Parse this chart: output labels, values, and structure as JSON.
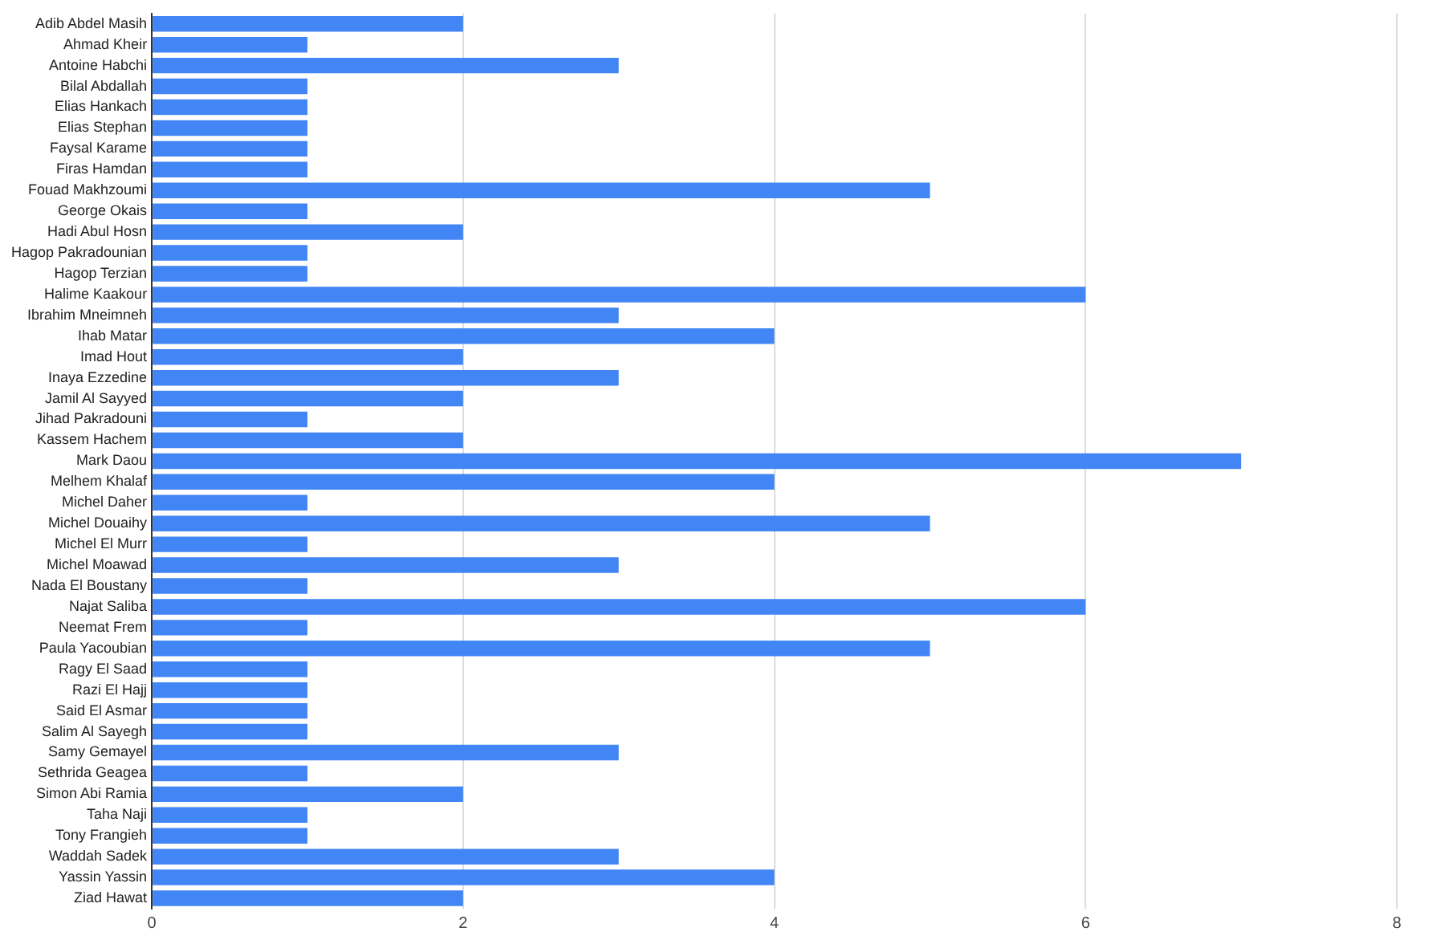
{
  "chart_data": {
    "type": "bar",
    "orientation": "horizontal",
    "categories": [
      "Adib Abdel Masih",
      "Ahmad Kheir",
      "Antoine Habchi",
      "Bilal Abdallah",
      "Elias Hankach",
      "Elias Stephan",
      "Faysal Karame",
      "Firas Hamdan",
      "Fouad Makhzoumi",
      "George Okais",
      "Hadi Abul Hosn",
      "Hagop Pakradounian",
      "Hagop Terzian",
      "Halime Kaakour",
      "Ibrahim Mneimneh",
      "Ihab Matar",
      "Imad Hout",
      "Inaya Ezzedine",
      "Jamil Al Sayyed",
      "Jihad Pakradouni",
      "Kassem Hachem",
      "Mark Daou",
      "Melhem Khalaf",
      "Michel Daher",
      "Michel Douaihy",
      "Michel El Murr",
      "Michel Moawad",
      "Nada El Boustany",
      "Najat Saliba",
      "Neemat Frem",
      "Paula Yacoubian",
      "Ragy El Saad",
      "Razi El Hajj",
      "Said El Asmar",
      "Salim Al Sayegh",
      "Samy Gemayel",
      "Sethrida Geagea",
      "Simon Abi Ramia",
      "Taha Naji",
      "Tony Frangieh",
      "Waddah Sadek",
      "Yassin Yassin",
      "Ziad Hawat"
    ],
    "values": [
      2,
      1,
      3,
      1,
      1,
      1,
      1,
      1,
      5,
      1,
      2,
      1,
      1,
      6,
      3,
      4,
      2,
      3,
      2,
      1,
      2,
      7,
      4,
      1,
      5,
      1,
      3,
      1,
      6,
      1,
      5,
      1,
      1,
      1,
      1,
      3,
      1,
      2,
      1,
      1,
      3,
      4,
      2
    ],
    "color": "#4285f4",
    "xlim": [
      0,
      8
    ],
    "xticks": [
      0,
      2,
      4,
      6,
      8
    ],
    "grid": "x",
    "legend": false
  }
}
